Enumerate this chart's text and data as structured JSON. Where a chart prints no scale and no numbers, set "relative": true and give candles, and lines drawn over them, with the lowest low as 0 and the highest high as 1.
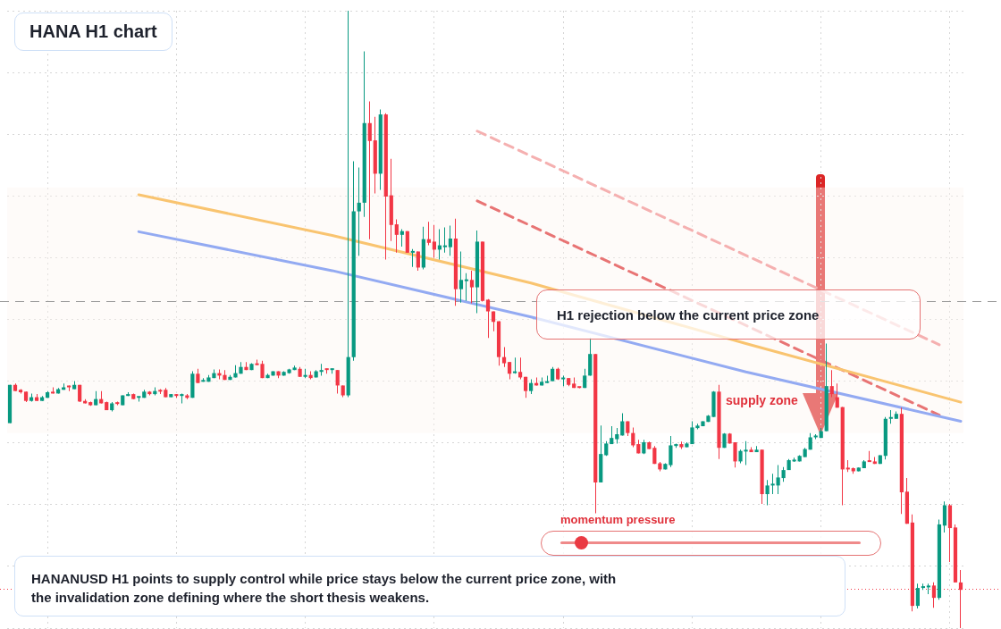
{
  "chart_data": {
    "type": "candlestick",
    "title": "HANA H1 chart",
    "relative": true,
    "grid": true,
    "categories": [
      null,
      null,
      null,
      null,
      null,
      null,
      null,
      null,
      null,
      null,
      null,
      null,
      null,
      null,
      null,
      null,
      null,
      null,
      null,
      null,
      null,
      null,
      null,
      null,
      null,
      null,
      null,
      null,
      null,
      null,
      null,
      null,
      null,
      null,
      null,
      null,
      null,
      null,
      null,
      null,
      null,
      null,
      null,
      null,
      null,
      null,
      null,
      null,
      null,
      null,
      null,
      null,
      null,
      null,
      null,
      null,
      null,
      null,
      null,
      null,
      null,
      null,
      null,
      null,
      null,
      null,
      null,
      null,
      null,
      null,
      null,
      null,
      null,
      null,
      null,
      null,
      null,
      null,
      null,
      null,
      null,
      null,
      null,
      null,
      null,
      null,
      null,
      null,
      null,
      null,
      null,
      null,
      null,
      null,
      null,
      null,
      null,
      null,
      null,
      null,
      null,
      null,
      null,
      null,
      null,
      null,
      null,
      null,
      null,
      null,
      null,
      null,
      null,
      null,
      null,
      null,
      null,
      null,
      null,
      null,
      null,
      null,
      null,
      null,
      null,
      null,
      null,
      null,
      null,
      null,
      null,
      null,
      null,
      null,
      null,
      null,
      null,
      null,
      null,
      null,
      null,
      null,
      null,
      null,
      null,
      null,
      null,
      null,
      null,
      null,
      null,
      null,
      null,
      null,
      null,
      null,
      null,
      null,
      null,
      null,
      null,
      null,
      null,
      null,
      null,
      null,
      null,
      null,
      null,
      null,
      null,
      null,
      null,
      null,
      null,
      null,
      null,
      null
    ],
    "ohlc": [
      [
        0.332,
        0.394,
        0.332,
        0.394
      ],
      [
        0.394,
        0.396,
        0.384,
        0.384
      ],
      [
        0.386,
        0.387,
        0.38,
        0.382
      ],
      [
        0.383,
        0.383,
        0.366,
        0.368
      ],
      [
        0.368,
        0.38,
        0.367,
        0.374
      ],
      [
        0.374,
        0.379,
        0.368,
        0.368
      ],
      [
        0.368,
        0.376,
        0.368,
        0.374
      ],
      [
        0.373,
        0.384,
        0.373,
        0.382
      ],
      [
        0.382,
        0.39,
        0.38,
        0.38
      ],
      [
        0.38,
        0.389,
        0.38,
        0.387
      ],
      [
        0.386,
        0.396,
        0.386,
        0.39
      ],
      [
        0.392,
        0.393,
        0.384,
        0.39
      ],
      [
        0.387,
        0.4,
        0.387,
        0.394
      ],
      [
        0.394,
        0.394,
        0.366,
        0.367
      ],
      [
        0.368,
        0.371,
        0.364,
        0.364
      ],
      [
        0.366,
        0.367,
        0.36,
        0.361
      ],
      [
        0.361,
        0.384,
        0.361,
        0.371
      ],
      [
        0.371,
        0.384,
        0.364,
        0.364
      ],
      [
        0.366,
        0.367,
        0.353,
        0.353
      ],
      [
        0.353,
        0.366,
        0.351,
        0.364
      ],
      [
        0.364,
        0.367,
        0.361,
        0.363
      ],
      [
        0.361,
        0.377,
        0.361,
        0.377
      ],
      [
        0.376,
        0.382,
        0.376,
        0.379
      ],
      [
        0.379,
        0.38,
        0.371,
        0.371
      ],
      [
        0.373,
        0.374,
        0.367,
        0.374
      ],
      [
        0.373,
        0.386,
        0.373,
        0.383
      ],
      [
        0.383,
        0.384,
        0.377,
        0.379
      ],
      [
        0.379,
        0.39,
        0.377,
        0.384
      ],
      [
        0.384,
        0.387,
        0.379,
        0.383
      ],
      [
        0.386,
        0.389,
        0.374,
        0.374
      ],
      [
        0.374,
        0.379,
        0.374,
        0.379
      ],
      [
        0.379,
        0.379,
        0.373,
        0.376
      ],
      [
        0.376,
        0.38,
        0.364,
        0.379
      ],
      [
        0.377,
        0.379,
        0.371,
        0.373
      ],
      [
        0.373,
        0.416,
        0.373,
        0.412
      ],
      [
        0.412,
        0.42,
        0.397,
        0.397
      ],
      [
        0.399,
        0.405,
        0.399,
        0.4
      ],
      [
        0.399,
        0.41,
        0.399,
        0.406
      ],
      [
        0.405,
        0.419,
        0.405,
        0.413
      ],
      [
        0.413,
        0.419,
        0.403,
        0.409
      ],
      [
        0.41,
        0.418,
        0.402,
        0.402
      ],
      [
        0.402,
        0.41,
        0.402,
        0.407
      ],
      [
        0.406,
        0.426,
        0.406,
        0.413
      ],
      [
        0.412,
        0.431,
        0.412,
        0.423
      ],
      [
        0.423,
        0.431,
        0.418,
        0.418
      ],
      [
        0.418,
        0.429,
        0.418,
        0.428
      ],
      [
        0.428,
        0.435,
        0.426,
        0.426
      ],
      [
        0.428,
        0.433,
        0.405,
        0.405
      ],
      [
        0.405,
        0.412,
        0.405,
        0.41
      ],
      [
        0.409,
        0.416,
        0.409,
        0.416
      ],
      [
        0.416,
        0.416,
        0.405,
        0.409
      ],
      [
        0.409,
        0.416,
        0.409,
        0.415
      ],
      [
        0.413,
        0.42,
        0.412,
        0.419
      ],
      [
        0.418,
        0.425,
        0.418,
        0.422
      ],
      [
        0.42,
        0.423,
        0.407,
        0.407
      ],
      [
        0.407,
        0.42,
        0.405,
        0.41
      ],
      [
        0.41,
        0.416,
        0.403,
        0.405
      ],
      [
        0.406,
        0.418,
        0.406,
        0.416
      ],
      [
        0.415,
        0.428,
        0.409,
        0.418
      ],
      [
        0.419,
        0.42,
        0.412,
        0.418
      ],
      [
        0.418,
        0.42,
        0.412,
        0.419
      ],
      [
        0.418,
        0.418,
        0.38,
        0.393
      ],
      [
        0.393,
        0.393,
        0.374,
        0.377
      ],
      [
        0.377,
        1,
        0.374,
        0.439
      ],
      [
        0.439,
        0.756,
        0.433,
        0.675
      ],
      [
        0.675,
        0.746,
        0.603,
        0.689
      ],
      [
        0.689,
        0.934,
        0.666,
        0.818
      ],
      [
        0.818,
        0.853,
        0.63,
        0.789
      ],
      [
        0.79,
        0.828,
        0.704,
        0.736
      ],
      [
        0.736,
        0.84,
        0.71,
        0.832
      ],
      [
        0.832,
        0.834,
        0.597,
        0.699
      ],
      [
        0.701,
        0.76,
        0.627,
        0.653
      ],
      [
        0.654,
        0.662,
        0.608,
        0.637
      ],
      [
        0.637,
        0.646,
        0.618,
        0.643
      ],
      [
        0.643,
        0.643,
        0.608,
        0.608
      ],
      [
        0.608,
        0.614,
        0.585,
        0.61
      ],
      [
        0.61,
        0.61,
        0.579,
        0.584
      ],
      [
        0.584,
        0.65,
        0.581,
        0.63
      ],
      [
        0.63,
        0.658,
        0.62,
        0.624
      ],
      [
        0.626,
        0.653,
        0.6,
        0.613
      ],
      [
        0.613,
        0.646,
        0.597,
        0.62
      ],
      [
        0.617,
        0.649,
        0.608,
        0.618
      ],
      [
        0.617,
        0.652,
        0.603,
        0.631
      ],
      [
        0.631,
        0.663,
        0.522,
        0.549
      ],
      [
        0.549,
        0.61,
        0.527,
        0.564
      ],
      [
        0.562,
        0.575,
        0.53,
        0.564
      ],
      [
        0.564,
        0.579,
        0.526,
        0.552
      ],
      [
        0.552,
        0.644,
        0.51,
        0.626
      ],
      [
        0.626,
        0.626,
        0.529,
        0.53
      ],
      [
        0.532,
        0.533,
        0.47,
        0.513
      ],
      [
        0.513,
        0.513,
        0.481,
        0.496
      ],
      [
        0.497,
        0.497,
        0.425,
        0.439
      ],
      [
        0.439,
        0.455,
        0.423,
        0.429
      ],
      [
        0.431,
        0.431,
        0.403,
        0.412
      ],
      [
        0.413,
        0.438,
        0.412,
        0.415
      ],
      [
        0.415,
        0.438,
        0.403,
        0.406
      ],
      [
        0.407,
        0.407,
        0.373,
        0.384
      ],
      [
        0.384,
        0.403,
        0.379,
        0.397
      ],
      [
        0.397,
        0.406,
        0.393,
        0.393
      ],
      [
        0.393,
        0.406,
        0.393,
        0.399
      ],
      [
        0.397,
        0.409,
        0.397,
        0.4
      ],
      [
        0.4,
        0.423,
        0.4,
        0.42
      ],
      [
        0.42,
        0.422,
        0.402,
        0.403
      ],
      [
        0.403,
        0.409,
        0.392,
        0.405
      ],
      [
        0.405,
        0.405,
        0.392,
        0.394
      ],
      [
        0.396,
        0.406,
        0.389,
        0.389
      ],
      [
        0.39,
        0.39,
        0.389,
        0.389
      ],
      [
        0.389,
        0.42,
        0.389,
        0.409
      ],
      [
        0.409,
        0.47,
        0.409,
        0.444
      ],
      [
        0.444,
        0.444,
        0.186,
        0.236
      ],
      [
        0.236,
        0.328,
        0.236,
        0.282
      ],
      [
        0.28,
        0.303,
        0.279,
        0.299
      ],
      [
        0.298,
        0.327,
        0.298,
        0.308
      ],
      [
        0.306,
        0.324,
        0.299,
        0.314
      ],
      [
        0.312,
        0.348,
        0.312,
        0.335
      ],
      [
        0.335,
        0.335,
        0.311,
        0.316
      ],
      [
        0.316,
        0.325,
        0.293,
        0.296
      ],
      [
        0.298,
        0.305,
        0.283,
        0.283
      ],
      [
        0.283,
        0.305,
        0.282,
        0.301
      ],
      [
        0.301,
        0.302,
        0.29,
        0.29
      ],
      [
        0.292,
        0.295,
        0.266,
        0.266
      ],
      [
        0.267,
        0.269,
        0.254,
        0.257
      ],
      [
        0.257,
        0.267,
        0.257,
        0.266
      ],
      [
        0.264,
        0.311,
        0.261,
        0.296
      ],
      [
        0.295,
        0.299,
        0.292,
        0.298
      ],
      [
        0.298,
        0.302,
        0.29,
        0.293
      ],
      [
        0.293,
        0.301,
        0.293,
        0.299
      ],
      [
        0.298,
        0.335,
        0.298,
        0.325
      ],
      [
        0.324,
        0.331,
        0.322,
        0.328
      ],
      [
        0.327,
        0.335,
        0.327,
        0.335
      ],
      [
        0.334,
        0.345,
        0.334,
        0.344
      ],
      [
        0.342,
        0.384,
        0.342,
        0.383
      ],
      [
        0.383,
        0.394,
        0.274,
        0.292
      ],
      [
        0.292,
        0.316,
        0.292,
        0.315
      ],
      [
        0.315,
        0.316,
        0.299,
        0.299
      ],
      [
        0.301,
        0.301,
        0.26,
        0.27
      ],
      [
        0.27,
        0.289,
        0.267,
        0.287
      ],
      [
        0.286,
        0.303,
        0.264,
        0.287
      ],
      [
        0.289,
        0.293,
        0.285,
        0.285
      ],
      [
        0.285,
        0.295,
        0.285,
        0.289
      ],
      [
        0.289,
        0.289,
        0.201,
        0.217
      ],
      [
        0.217,
        0.24,
        0.199,
        0.231
      ],
      [
        0.231,
        0.25,
        0.217,
        0.233
      ],
      [
        0.231,
        0.264,
        0.217,
        0.244
      ],
      [
        0.243,
        0.261,
        0.237,
        0.256
      ],
      [
        0.256,
        0.274,
        0.256,
        0.272
      ],
      [
        0.27,
        0.276,
        0.269,
        0.272
      ],
      [
        0.27,
        0.28,
        0.27,
        0.279
      ],
      [
        0.277,
        0.292,
        0.277,
        0.29
      ],
      [
        0.289,
        0.316,
        0.289,
        0.309
      ],
      [
        0.309,
        0.314,
        0.306,
        0.311
      ],
      [
        0.308,
        0.324,
        0.308,
        0.319
      ],
      [
        0.319,
        0.461,
        0.319,
        0.392
      ],
      [
        0.392,
        0.418,
        0.374,
        0.379
      ],
      [
        0.374,
        0.396,
        0.357,
        0.357
      ],
      [
        0.358,
        0.358,
        0.199,
        0.257
      ],
      [
        0.259,
        0.272,
        0.253,
        0.257
      ],
      [
        0.259,
        0.26,
        0.25,
        0.254
      ],
      [
        0.254,
        0.26,
        0.254,
        0.26
      ],
      [
        0.259,
        0.272,
        0.259,
        0.27
      ],
      [
        0.27,
        0.287,
        0.269,
        0.269
      ],
      [
        0.27,
        0.277,
        0.266,
        0.266
      ],
      [
        0.266,
        0.28,
        0.266,
        0.28
      ],
      [
        0.279,
        0.342,
        0.273,
        0.339
      ],
      [
        0.339,
        0.353,
        0.331,
        0.341
      ],
      [
        0.339,
        0.351,
        0.339,
        0.347
      ],
      [
        0.347,
        0.357,
        0.185,
        0.22
      ],
      [
        0.221,
        0.243,
        0.169,
        0.169
      ],
      [
        0.171,
        0.184,
        0.027,
        0.036
      ],
      [
        0.036,
        0.072,
        0.032,
        0.065
      ],
      [
        0.065,
        0.072,
        0.062,
        0.066
      ],
      [
        0.066,
        0.072,
        0.055,
        0.068
      ],
      [
        0.069,
        0.074,
        0.033,
        0.049
      ],
      [
        0.049,
        0.176,
        0.046,
        0.168
      ],
      [
        0.166,
        0.205,
        0.155,
        0.199
      ],
      [
        0.199,
        0.201,
        0.107,
        0.162
      ],
      [
        0.163,
        0.168,
        0.074,
        0.074
      ],
      [
        0.074,
        0.094,
        0,
        0.062
      ]
    ],
    "series": [
      {
        "type": "line",
        "color": "#f9c470",
        "values": [
          null,
          null,
          null,
          null,
          null,
          null,
          null,
          null,
          null,
          null,
          null,
          null,
          null,
          null,
          null,
          null,
          null,
          null,
          null,
          null,
          null,
          null,
          null,
          null,
          0.702,
          null,
          null,
          null,
          null,
          null,
          null,
          null,
          null,
          null,
          null,
          null,
          null,
          null,
          null,
          null,
          null,
          null,
          null,
          null,
          null,
          null,
          null,
          null,
          null,
          null,
          null,
          null,
          null,
          null,
          null,
          null,
          null,
          null,
          null,
          null,
          0.636,
          null,
          null,
          null,
          null,
          null,
          null,
          null,
          null,
          null,
          null,
          null,
          null,
          null,
          null,
          null,
          null,
          null,
          null,
          null,
          null,
          null,
          null,
          null,
          null,
          null,
          null,
          null,
          null,
          null,
          null,
          null,
          null,
          null,
          null,
          null,
          null,
          0.559,
          null,
          null,
          null,
          null,
          null,
          null,
          null,
          null,
          null,
          null,
          null,
          null,
          null,
          null,
          null,
          null,
          null,
          null,
          null,
          null,
          null,
          null,
          null,
          null,
          null,
          null,
          null,
          null,
          null,
          null,
          null,
          null,
          null,
          null,
          null,
          null,
          null,
          null,
          null,
          0.461,
          null,
          null,
          null,
          null,
          null,
          null,
          null,
          null,
          null,
          null,
          null,
          null,
          null,
          null,
          null,
          null,
          null,
          null,
          null,
          null,
          null,
          null,
          null,
          null,
          null,
          null,
          null,
          null,
          null,
          null,
          null,
          null,
          null,
          null,
          null,
          null,
          null,
          null,
          null,
          0.366
        ]
      },
      {
        "type": "line",
        "color": "#93aaf2",
        "values": [
          null,
          null,
          null,
          null,
          null,
          null,
          null,
          null,
          null,
          null,
          null,
          null,
          null,
          null,
          null,
          null,
          null,
          null,
          null,
          null,
          null,
          null,
          null,
          null,
          0.642,
          null,
          null,
          null,
          null,
          null,
          null,
          null,
          null,
          null,
          null,
          null,
          null,
          null,
          null,
          null,
          null,
          null,
          null,
          null,
          null,
          null,
          null,
          null,
          null,
          null,
          null,
          null,
          null,
          null,
          null,
          null,
          null,
          null,
          null,
          null,
          0.579,
          null,
          null,
          null,
          null,
          null,
          null,
          null,
          null,
          null,
          null,
          null,
          null,
          null,
          null,
          null,
          null,
          null,
          null,
          null,
          null,
          null,
          null,
          null,
          null,
          null,
          null,
          null,
          null,
          null,
          null,
          null,
          null,
          null,
          null,
          null,
          null,
          0.504,
          null,
          null,
          null,
          null,
          null,
          null,
          null,
          null,
          null,
          null,
          null,
          null,
          null,
          null,
          null,
          null,
          null,
          null,
          null,
          null,
          null,
          null,
          null,
          null,
          null,
          null,
          null,
          null,
          null,
          null,
          null,
          null,
          null,
          null,
          null,
          null,
          null,
          null,
          null,
          0.415,
          null,
          null,
          null,
          null,
          null,
          null,
          null,
          null,
          null,
          null,
          null,
          null,
          null,
          null,
          null,
          null,
          null,
          null,
          null,
          null,
          null,
          null,
          null,
          null,
          null,
          null,
          null,
          null,
          null,
          null,
          null,
          null,
          null,
          null,
          null,
          null,
          null,
          null,
          null,
          0.335
        ]
      },
      {
        "type": "line",
        "color": "#f5b0b0",
        "line_style": "dashed",
        "values": [
          null,
          null,
          null,
          null,
          null,
          null,
          null,
          null,
          null,
          null,
          null,
          null,
          null,
          null,
          null,
          null,
          null,
          null,
          null,
          null,
          null,
          null,
          null,
          null,
          null,
          null,
          null,
          null,
          null,
          null,
          null,
          null,
          null,
          null,
          null,
          null,
          null,
          null,
          null,
          null,
          null,
          null,
          null,
          null,
          null,
          null,
          null,
          null,
          null,
          null,
          null,
          null,
          null,
          null,
          null,
          null,
          null,
          null,
          null,
          null,
          null,
          null,
          null,
          null,
          null,
          null,
          null,
          null,
          null,
          null,
          null,
          null,
          null,
          null,
          null,
          null,
          null,
          null,
          null,
          null,
          null,
          null,
          null,
          null,
          null,
          null,
          null,
          0.805,
          null,
          null,
          null,
          null,
          null,
          null,
          null,
          null,
          null,
          null,
          null,
          null,
          null,
          null,
          null,
          null,
          null,
          null,
          null,
          null,
          null,
          null,
          null,
          null,
          null,
          null,
          null,
          null,
          null,
          null,
          null,
          null,
          null,
          null,
          null,
          null,
          null,
          null,
          null,
          null,
          null,
          null,
          null,
          null,
          null,
          null,
          null,
          null,
          null,
          null,
          null,
          null,
          null,
          null,
          null,
          null,
          null,
          null,
          null,
          null,
          null,
          null,
          null,
          null,
          null,
          null,
          null,
          null,
          null,
          null,
          null,
          null,
          null,
          null,
          null,
          null,
          null,
          null,
          null,
          null,
          null,
          null,
          null,
          null,
          null,
          0.459,
          null,
          null,
          null,
          null
        ]
      },
      {
        "type": "line",
        "color": "#e87474",
        "line_style": "dashed",
        "values": [
          null,
          null,
          null,
          null,
          null,
          null,
          null,
          null,
          null,
          null,
          null,
          null,
          null,
          null,
          null,
          null,
          null,
          null,
          null,
          null,
          null,
          null,
          null,
          null,
          null,
          null,
          null,
          null,
          null,
          null,
          null,
          null,
          null,
          null,
          null,
          null,
          null,
          null,
          null,
          null,
          null,
          null,
          null,
          null,
          null,
          null,
          null,
          null,
          null,
          null,
          null,
          null,
          null,
          null,
          null,
          null,
          null,
          null,
          null,
          null,
          null,
          null,
          null,
          null,
          null,
          null,
          null,
          null,
          null,
          null,
          null,
          null,
          null,
          null,
          null,
          null,
          null,
          null,
          null,
          null,
          null,
          null,
          null,
          null,
          null,
          null,
          null,
          0.692,
          null,
          null,
          null,
          null,
          null,
          null,
          null,
          null,
          null,
          null,
          null,
          null,
          null,
          null,
          null,
          null,
          null,
          null,
          null,
          null,
          null,
          null,
          null,
          null,
          null,
          null,
          null,
          null,
          null,
          null,
          null,
          null,
          null,
          null,
          null,
          null,
          null,
          null,
          null,
          null,
          null,
          null,
          null,
          null,
          null,
          null,
          null,
          null,
          null,
          null,
          null,
          null,
          null,
          null,
          null,
          null,
          null,
          null,
          null,
          null,
          null,
          null,
          null,
          null,
          null,
          null,
          null,
          null,
          null,
          null,
          null,
          null,
          null,
          null,
          null,
          null,
          null,
          null,
          null,
          null,
          null,
          null,
          null,
          null,
          null,
          0.345,
          null,
          null,
          null,
          null
        ]
      }
    ],
    "bands": [
      {
        "axis": "y",
        "from": 0.316,
        "to": 0.714,
        "color": "#fdf5f0"
      }
    ],
    "ref_lines": [
      {
        "axis": "y",
        "value": 0.529,
        "color": "#9a9a9a",
        "line_style": "dashed"
      },
      {
        "axis": "y",
        "value": 0.064,
        "color": "#f23645",
        "line_style": "dotted"
      }
    ],
    "annotations": [
      "H1 rejection below the current price zone",
      "supply zone",
      "momentum pressure",
      "HANANUSD H1 points to supply control while price stays below the current price zone, with the invalidation zone defining where the short thesis weakens."
    ]
  }
}
